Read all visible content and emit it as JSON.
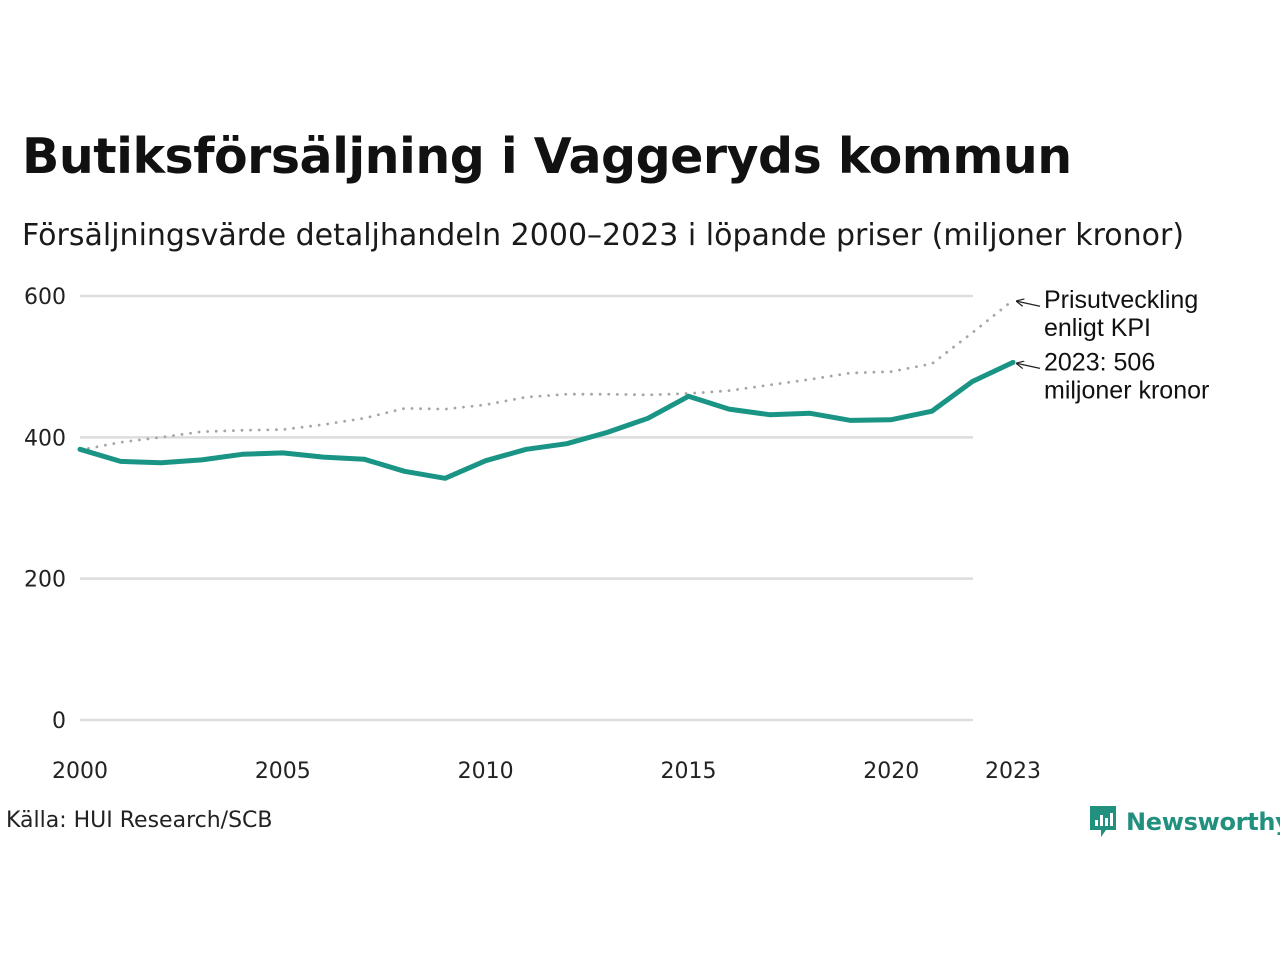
{
  "header": {
    "title": "Butiksförsäljning i Vaggeryds kommun",
    "subtitle": "Försäljningsvärde detaljhandeln 2000–2023 i löpande priser (miljoner kronor)"
  },
  "footer": {
    "source": "Källa: HUI Research/SCB",
    "brand": "Newsworthy"
  },
  "colors": {
    "sales_line": "#1a9485",
    "kpi_line": "#a6a6a6",
    "grid": "#dddddd",
    "brand": "#22907f"
  },
  "chart_data": {
    "type": "line",
    "title": "Butiksförsäljning i Vaggeryds kommun",
    "xlabel": "",
    "ylabel": "",
    "xlim": [
      2000,
      2023
    ],
    "ylim": [
      0,
      600
    ],
    "grid": true,
    "x_ticks": [
      2000,
      2005,
      2010,
      2015,
      2020,
      2023
    ],
    "y_ticks": [
      0,
      200,
      400,
      600
    ],
    "x": [
      2000,
      2001,
      2002,
      2003,
      2004,
      2005,
      2006,
      2007,
      2008,
      2009,
      2010,
      2011,
      2012,
      2013,
      2014,
      2015,
      2016,
      2017,
      2018,
      2019,
      2020,
      2021,
      2022,
      2023
    ],
    "series": [
      {
        "name": "Prisutveckling enligt KPI",
        "style": "dotted",
        "values": [
          382,
          393,
          400,
          408,
          410,
          411,
          418,
          427,
          441,
          440,
          446,
          457,
          461,
          461,
          460,
          462,
          466,
          474,
          482,
          491,
          493,
          504,
          548,
          594
        ]
      },
      {
        "name": "Försäljningsvärde",
        "style": "solid",
        "values": [
          383,
          366,
          364,
          368,
          376,
          378,
          372,
          369,
          352,
          342,
          367,
          383,
          391,
          407,
          427,
          458,
          440,
          432,
          434,
          424,
          425,
          437,
          479,
          506
        ]
      }
    ],
    "annotations": [
      {
        "series": "Prisutveckling enligt KPI",
        "x": 2023,
        "lines": [
          "Prisutveckling",
          "enligt KPI"
        ]
      },
      {
        "series": "Försäljningsvärde",
        "x": 2023,
        "lines": [
          "2023: 506",
          "miljoner kronor"
        ]
      }
    ]
  }
}
